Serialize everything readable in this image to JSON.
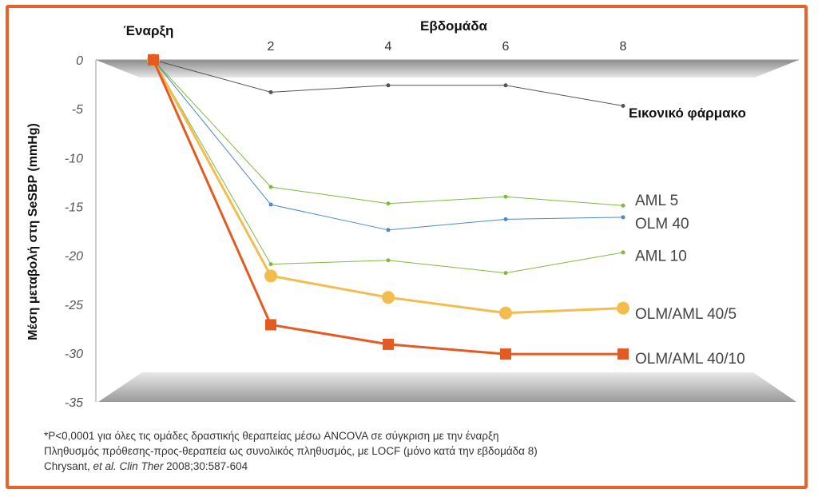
{
  "chart_data": {
    "type": "line",
    "xlabel": "Εβδομάδα",
    "ylabel": "Μέση μεταβολή στη SeSBP (mmHg)",
    "baseline_label": "Έναρξη",
    "x": [
      0,
      2,
      4,
      6,
      8
    ],
    "x_tick_labels": [
      "2",
      "4",
      "6",
      "8"
    ],
    "ylim": [
      -35,
      0
    ],
    "y_ticks": [
      0,
      -5,
      -10,
      -15,
      -20,
      -25,
      -30,
      -35
    ],
    "grid": false,
    "series": [
      {
        "name": "Εικονικό φάρμακο",
        "values": [
          0,
          -3.3,
          -2.6,
          -2.6,
          -4.7
        ],
        "color": "#555555",
        "marker": "dot",
        "width": 1
      },
      {
        "name": "AML 5",
        "values": [
          0,
          -13.0,
          -14.7,
          -14.0,
          -14.9
        ],
        "color": "#7dbb3f",
        "marker": "dot",
        "width": 1
      },
      {
        "name": "OLM 40",
        "values": [
          0,
          -14.8,
          -17.4,
          -16.3,
          -16.1
        ],
        "color": "#4a8ac6",
        "marker": "dot",
        "width": 1
      },
      {
        "name": "AML 10",
        "values": [
          0,
          -20.9,
          -20.5,
          -21.8,
          -19.7
        ],
        "color": "#7dbb3f",
        "marker": "dot",
        "width": 1
      },
      {
        "name": "OLM/AML 40/5",
        "values": [
          0,
          -22.1,
          -24.3,
          -25.9,
          -25.4
        ],
        "color": "#f2bd4e",
        "marker": "circle",
        "width": 3
      },
      {
        "name": "OLM/AML 40/10",
        "values": [
          0,
          -27.1,
          -29.1,
          -30.1,
          -30.1
        ],
        "color": "#e35b22",
        "marker": "square",
        "width": 3
      }
    ]
  },
  "footnotes": {
    "line1": "*P<0,0001 για όλες τις ομάδες δραστικής θεραπείας μέσω ANCOVA σε σύγκριση με την έναρξη",
    "line2": "Πληθυσμός πρόθεσης-προς-θεραπεία ως συνολικός πληθυσμός, με LOCF (μόνο κατά την εβδομάδα 8)",
    "line3_authors": "Chrysant, ",
    "line3_journal": "et al. Clin Ther",
    "line3_ref": " 2008;30:587-604"
  },
  "colors": {
    "frame": "#e8622a",
    "floor": "#b9b9b9"
  }
}
